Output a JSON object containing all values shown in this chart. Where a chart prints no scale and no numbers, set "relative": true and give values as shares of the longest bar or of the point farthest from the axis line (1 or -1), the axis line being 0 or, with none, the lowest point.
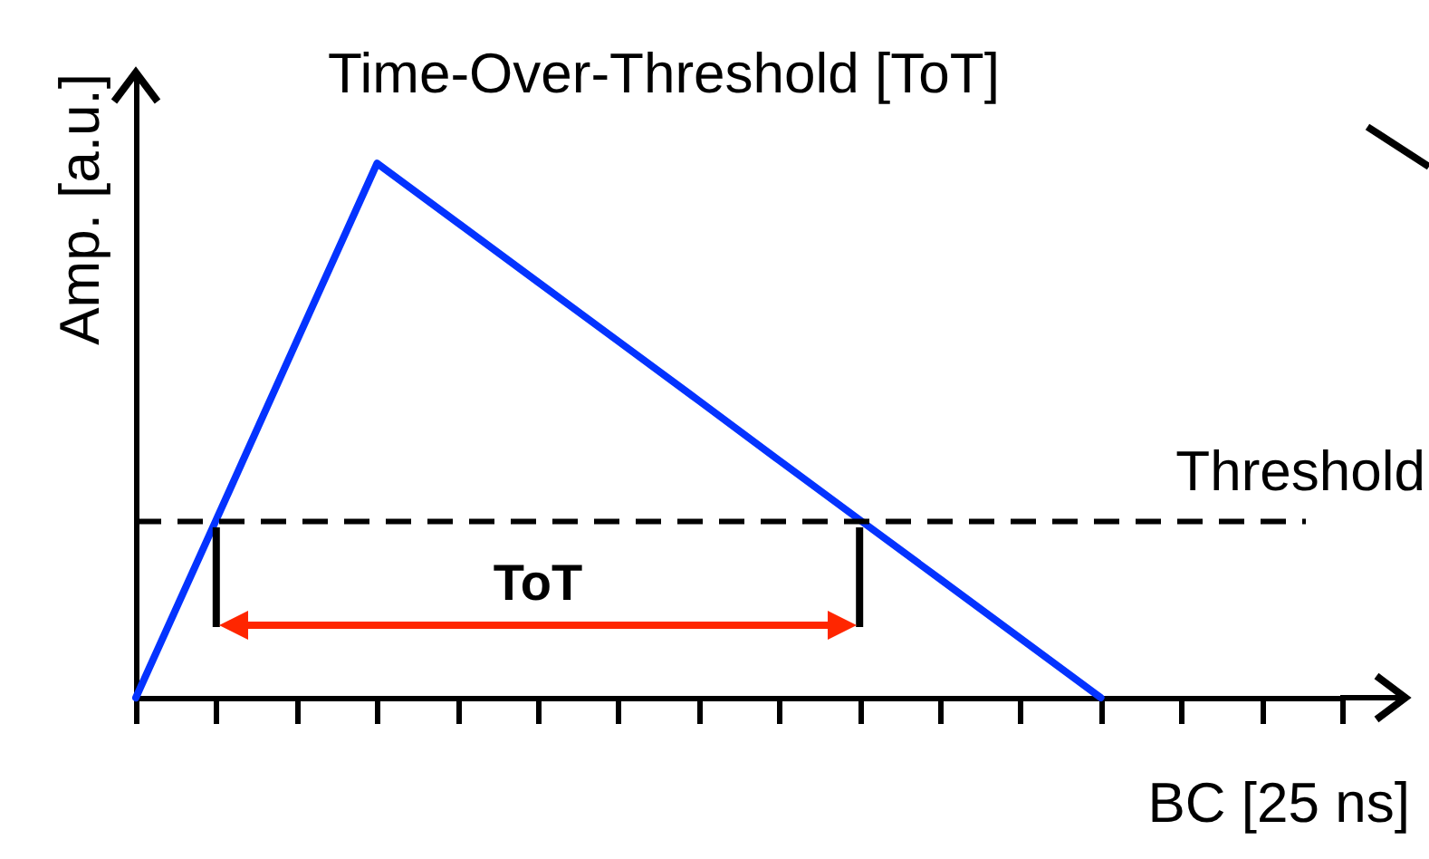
{
  "chart_data": {
    "type": "line",
    "title": "Time-Over-Threshold [ToT]",
    "xlabel": "BC [25 ns]",
    "ylabel": "Amp. [a.u.]",
    "relative": true,
    "categories": [
      null,
      null,
      null,
      null,
      null,
      null,
      null,
      null,
      null,
      null,
      null,
      null,
      null,
      null,
      null,
      null
    ],
    "series": [
      {
        "color": "#0433ff",
        "values": [
          0,
          0.333,
          0.667,
          1,
          0.889,
          0.778,
          0.667,
          0.556,
          0.444,
          0.333,
          0.222,
          0.111,
          0,
          null,
          null,
          null
        ]
      }
    ],
    "ref_lines": [
      {
        "axis": "y",
        "value": 0.33,
        "label": "Threshold",
        "color": "#000000",
        "line_style": "dashed"
      }
    ],
    "annotations": [
      "ToT"
    ]
  }
}
